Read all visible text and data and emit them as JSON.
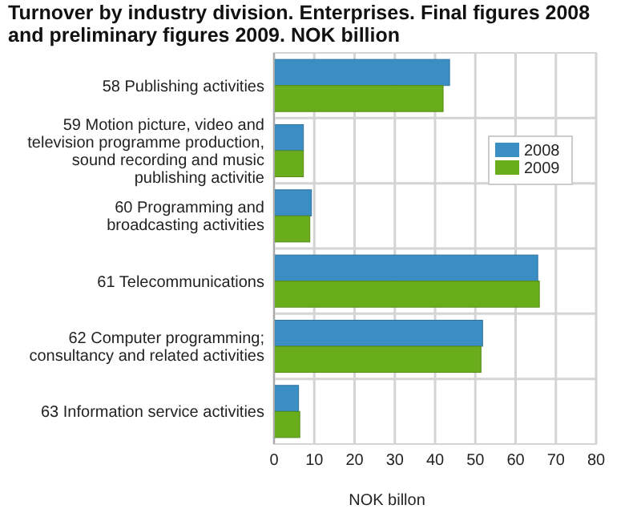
{
  "chart_data": {
    "type": "bar",
    "orientation": "horizontal",
    "title": "Turnover by industry division. Enterprises. Final figures 2008 and preliminary figures 2009. NOK billion",
    "xlabel": "NOK billon",
    "categories": [
      "58 Publishing activities",
      "59 Motion picture, video and television programme production, sound recording and music publishing activitie",
      "60 Programming and broadcasting activities",
      "61 Telecommunications",
      "62 Computer programming; consultancy and related activities",
      "63  Information service activities"
    ],
    "series": [
      {
        "name": "2008",
        "color": "#3a8ec4",
        "values": [
          43.6,
          7.3,
          9.3,
          65.5,
          51.8,
          6.1
        ]
      },
      {
        "name": "2009",
        "color": "#6aad1c",
        "values": [
          42,
          7.3,
          8.9,
          65.9,
          51.4,
          6.4
        ]
      }
    ],
    "xlim": [
      0,
      80
    ],
    "xticks": [
      0,
      10,
      20,
      30,
      40,
      50,
      60,
      70,
      80
    ],
    "grid": "x",
    "legend": "right"
  }
}
